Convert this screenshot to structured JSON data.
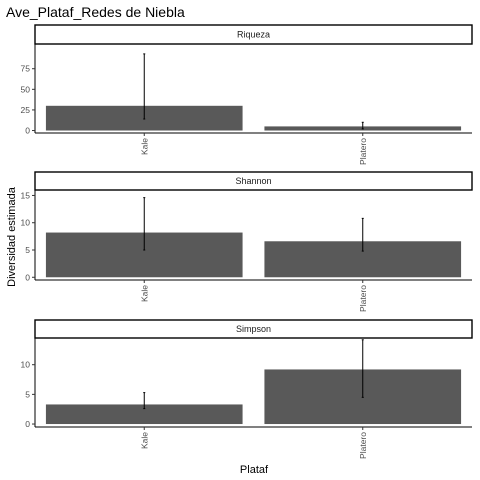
{
  "chart_data": {
    "type": "bar",
    "title": "Ave_Plataf_Redes de Niebla",
    "xlabel": "Plataf",
    "ylabel": "Diversidad estimada",
    "grid": false,
    "colors": {
      "bar": "#595959",
      "strip_fill": "#ffffff",
      "strip_border": "#000000"
    },
    "panels": [
      {
        "strip": "Riqueza",
        "categories": [
          "Kale",
          "Platero"
        ],
        "values": [
          30,
          5
        ],
        "error_low": [
          14,
          2
        ],
        "error_high": [
          93,
          10
        ],
        "ylim": [
          -3,
          105
        ],
        "yticks": [
          0,
          25,
          50,
          75
        ]
      },
      {
        "strip": "Shannon",
        "categories": [
          "Kale",
          "Platero"
        ],
        "values": [
          8.2,
          6.6
        ],
        "error_low": [
          5.0,
          4.8
        ],
        "error_high": [
          14.6,
          10.8
        ],
        "ylim": [
          -0.5,
          16
        ],
        "yticks": [
          0,
          5,
          10,
          15
        ]
      },
      {
        "strip": "Simpson",
        "categories": [
          "Kale",
          "Platero"
        ],
        "values": [
          3.3,
          9.2
        ],
        "error_low": [
          2.6,
          4.5
        ],
        "error_high": [
          5.3,
          14.2
        ],
        "ylim": [
          -0.5,
          14.5
        ],
        "yticks": [
          0,
          5,
          10
        ]
      }
    ]
  }
}
